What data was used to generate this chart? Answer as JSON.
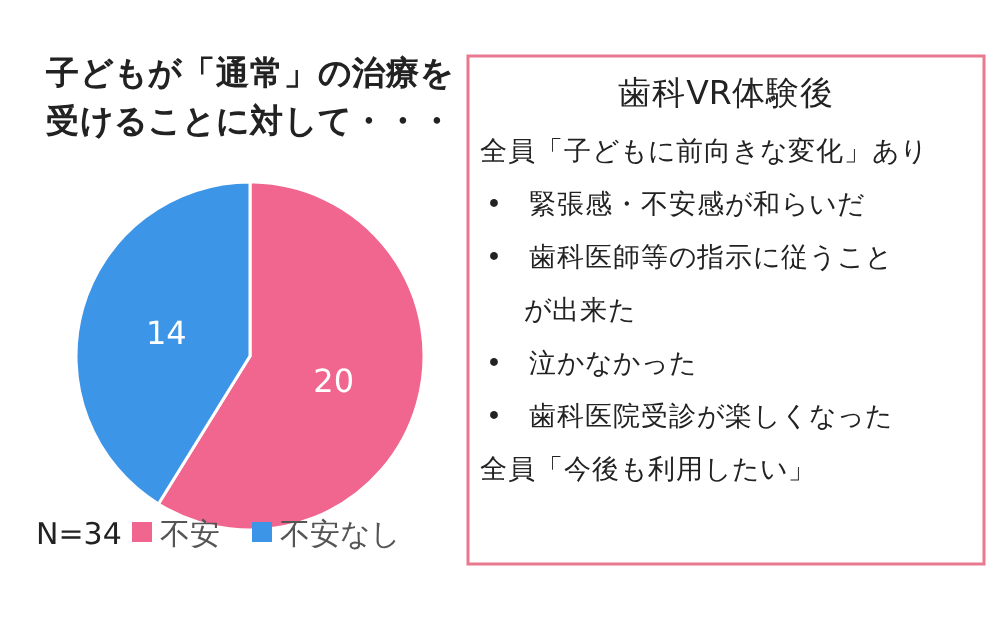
{
  "chart_data": [
    {
      "type": "pie",
      "title": "子どもが「通常」の治療を受けることに対して・・・",
      "categories": [
        "不安",
        "不安なし"
      ],
      "values": [
        20,
        14
      ],
      "colors": [
        "#f0668f",
        "#3d95e8"
      ],
      "data_labels": true,
      "legend": "bottom",
      "annotations": [
        "N=34"
      ]
    },
    {
      "type": "other",
      "title": "歯科VR体験後",
      "annotations": [
        "全員「子どもに前向きな変化」あり",
        "•  緊張感・不安感が和らいだ",
        "•  歯科医師等の指示に従うことが出来た",
        "•  泣かなかった",
        "•  歯科医院受診が楽しくなった",
        "全員「今後も利用したい」"
      ]
    }
  ]
}
